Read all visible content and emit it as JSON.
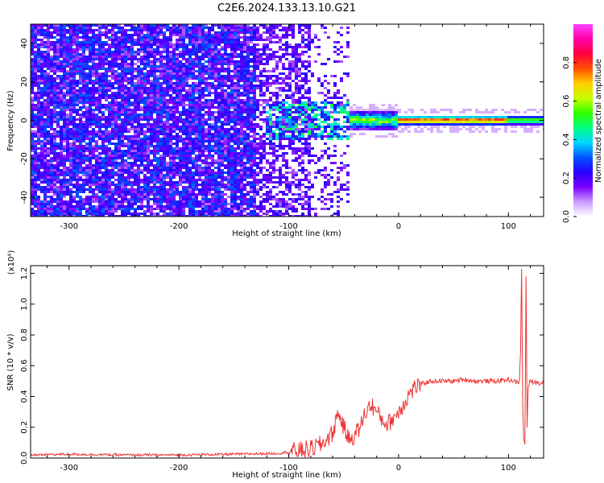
{
  "title": "C2E6.2024.133.13.10.G21",
  "chart_data": [
    {
      "type": "heatmap",
      "xlabel": "Height of straight line (km)",
      "ylabel": "Frequency (Hz)",
      "xlim": [
        -335,
        132
      ],
      "ylim": [
        -50,
        50
      ],
      "xticks": [
        -300,
        -200,
        -100,
        0,
        100
      ],
      "xtick_labels": [
        "-300",
        "-200",
        "-100",
        "0",
        "100"
      ],
      "yticks": [
        -40,
        -20,
        0,
        20,
        40
      ],
      "ytick_labels": [
        "-40",
        "-20",
        "0",
        "20",
        "40"
      ],
      "colorbar": {
        "label": "Normalized spectral amplitude",
        "range": [
          0,
          1
        ],
        "ticks": [
          0.0,
          0.2,
          0.4,
          0.6,
          0.8
        ],
        "tick_labels": [
          "0.0",
          "0.2",
          "0.4",
          "0.6",
          "0.8"
        ],
        "colormap": [
          "#ffffff",
          "#cc99ff",
          "#7a00ff",
          "#2a00ff",
          "#0055ff",
          "#00d8ff",
          "#00ff80",
          "#30ff00",
          "#c8ff00",
          "#ffd000",
          "#ff5000",
          "#ff0040",
          "#ff00aa",
          "#ff40ff"
        ]
      },
      "features": {
        "noise_region_x": [
          -335,
          -45
        ],
        "spectral_line_frequency_hz": 0,
        "spectral_line_x": [
          -45,
          132
        ]
      }
    },
    {
      "type": "line",
      "xlabel": "Height of straight line (km)",
      "ylabel": "SNR (10 * v/v)",
      "y_multiplier": "(x10⁴)",
      "xlim": [
        -335,
        132
      ],
      "ylim": [
        0,
        1.25
      ],
      "xticks": [
        -300,
        -200,
        -100,
        0,
        100
      ],
      "xtick_labels": [
        "-300",
        "-200",
        "-100",
        "0",
        "100"
      ],
      "yticks": [
        0.0,
        0.2,
        0.4,
        0.6,
        0.8,
        1.0,
        1.2
      ],
      "ytick_labels": [
        "0.0",
        "0.2",
        "0.4",
        "0.6",
        "0.8",
        "1.0",
        "1.2"
      ],
      "series": [
        {
          "color": "#ee3333",
          "x": [
            -335,
            -300,
            -250,
            -200,
            -150,
            -110,
            -100,
            -90,
            -80,
            -70,
            -60,
            -55,
            -50,
            -45,
            -40,
            -35,
            -30,
            -25,
            -20,
            -15,
            -10,
            -5,
            0,
            5,
            10,
            15,
            20,
            30,
            40,
            50,
            60,
            70,
            80,
            90,
            100,
            105,
            108,
            110,
            111,
            112,
            113,
            114,
            115,
            116,
            117,
            118,
            120,
            125,
            132
          ],
          "y": [
            0.02,
            0.025,
            0.02,
            0.02,
            0.025,
            0.03,
            0.04,
            0.05,
            0.06,
            0.09,
            0.16,
            0.3,
            0.2,
            0.12,
            0.15,
            0.2,
            0.3,
            0.35,
            0.3,
            0.25,
            0.22,
            0.26,
            0.3,
            0.36,
            0.42,
            0.46,
            0.48,
            0.5,
            0.5,
            0.5,
            0.51,
            0.5,
            0.5,
            0.5,
            0.51,
            0.5,
            0.49,
            0.5,
            0.7,
            1.22,
            0.35,
            0.12,
            0.08,
            1.18,
            0.2,
            0.46,
            0.5,
            0.49,
            0.49
          ]
        }
      ]
    }
  ]
}
